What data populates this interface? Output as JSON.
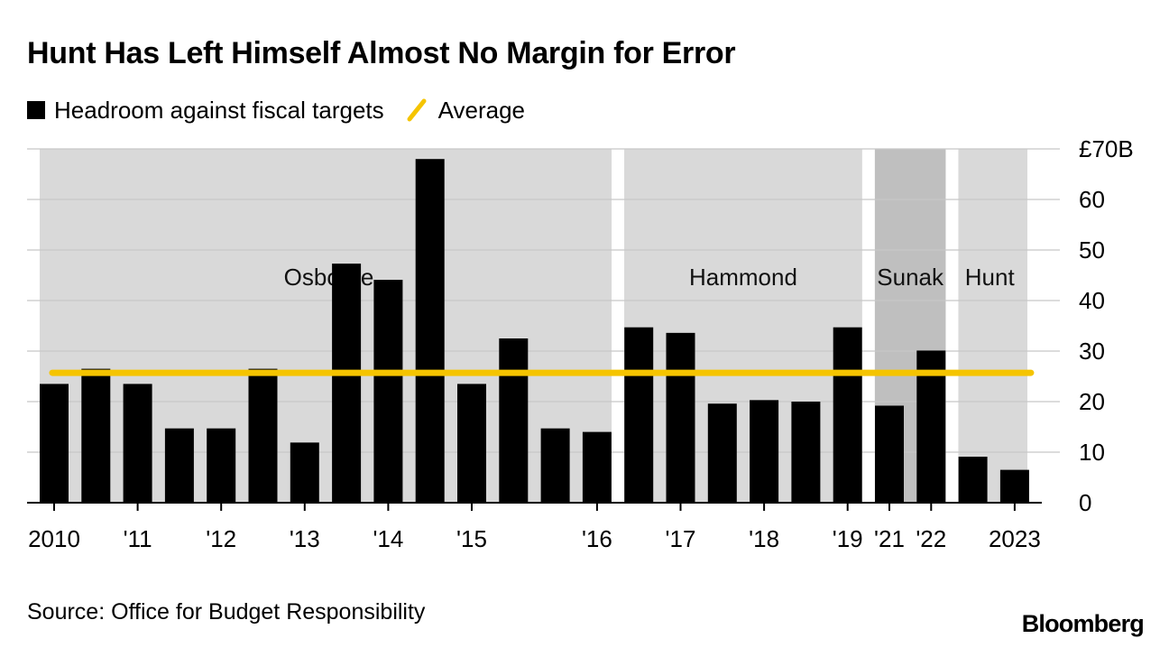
{
  "title": "Hunt Has Left Himself Almost No Margin for Error",
  "legend": {
    "series_label": "Headroom against fiscal targets",
    "average_label": "Average"
  },
  "source": "Source: Office for Budget Responsibility",
  "brand": "Bloomberg",
  "colors": {
    "bar": "#000000",
    "average": "#F5C400",
    "band": "#D9D9D9",
    "band_sunak": "#BFBFBF",
    "grid": "#C8C8C8"
  },
  "chart_data": {
    "type": "bar",
    "series": [
      {
        "name": "Headroom against fiscal targets",
        "values": [
          23.5,
          26.5,
          23.5,
          14.7,
          14.7,
          26.5,
          11.9,
          47.3,
          44.1,
          68.0,
          23.5,
          32.5,
          14.7,
          14.0,
          34.7,
          33.6,
          19.6,
          20.3,
          20.0,
          34.7,
          19.2,
          30.1,
          9.1,
          6.5
        ]
      }
    ],
    "average": 25.7,
    "ylim": [
      0,
      70
    ],
    "y_ticks": [
      0,
      10,
      20,
      30,
      40,
      50,
      60,
      70
    ],
    "y_tick_labels": [
      "0",
      "10",
      "20",
      "30",
      "40",
      "50",
      "60",
      "£70B"
    ],
    "x_tick_labels": [
      {
        "bar_index": 0,
        "label": "2010"
      },
      {
        "bar_index": 2,
        "label": "'11"
      },
      {
        "bar_index": 4,
        "label": "'12"
      },
      {
        "bar_index": 6,
        "label": "'13"
      },
      {
        "bar_index": 8,
        "label": "'14"
      },
      {
        "bar_index": 10,
        "label": "'15"
      },
      {
        "bar_index": 13,
        "label": "'16"
      },
      {
        "bar_index": 15,
        "label": "'17"
      },
      {
        "bar_index": 17,
        "label": "'18"
      },
      {
        "bar_index": 19,
        "label": "'19"
      },
      {
        "bar_index": 20,
        "label": "'21"
      },
      {
        "bar_index": 21,
        "label": "'22"
      },
      {
        "bar_index": 23,
        "label": "2023"
      }
    ],
    "periods": [
      {
        "label": "Osborne",
        "start": 0,
        "end": 13,
        "shade": "light"
      },
      {
        "label": "Hammond",
        "start": 14,
        "end": 19,
        "shade": "light"
      },
      {
        "label": "Sunak",
        "start": 20,
        "end": 21,
        "shade": "dark"
      },
      {
        "label": "Hunt",
        "start": 22,
        "end": 23,
        "shade": "light"
      }
    ],
    "grid": true,
    "y_axis_side": "right",
    "legend_position": "top-left"
  }
}
